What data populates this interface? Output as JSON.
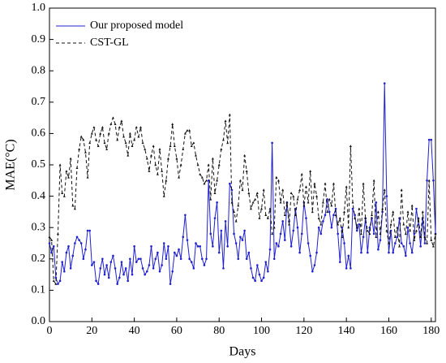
{
  "chart_data": {
    "type": "line",
    "xlabel": "Days",
    "ylabel": "MAE(°C)",
    "xlim": [
      0,
      182
    ],
    "ylim": [
      0,
      1
    ],
    "xticks": [
      0,
      20,
      40,
      60,
      80,
      100,
      120,
      140,
      160,
      180
    ],
    "yticks": [
      {
        "value": 0,
        "label": "0.0"
      },
      0.1,
      0.2,
      0.3,
      0.4,
      0.5,
      0.6,
      0.7,
      0.8,
      0.9,
      {
        "value": 1,
        "label": "1.0"
      }
    ],
    "legend": "upper left",
    "x": [
      0,
      1,
      2,
      3,
      4,
      5,
      6,
      7,
      8,
      9,
      10,
      11,
      12,
      13,
      14,
      15,
      16,
      17,
      18,
      19,
      20,
      21,
      22,
      23,
      24,
      25,
      26,
      27,
      28,
      29,
      30,
      31,
      32,
      33,
      34,
      35,
      36,
      37,
      38,
      39,
      40,
      41,
      42,
      43,
      44,
      45,
      46,
      47,
      48,
      49,
      50,
      51,
      52,
      53,
      54,
      55,
      56,
      57,
      58,
      59,
      60,
      61,
      62,
      63,
      64,
      65,
      66,
      67,
      68,
      69,
      70,
      71,
      72,
      73,
      74,
      75,
      76,
      77,
      78,
      79,
      80,
      81,
      82,
      83,
      84,
      85,
      86,
      87,
      88,
      89,
      90,
      91,
      92,
      93,
      94,
      95,
      96,
      97,
      98,
      99,
      100,
      101,
      102,
      103,
      104,
      105,
      106,
      107,
      108,
      109,
      110,
      111,
      112,
      113,
      114,
      115,
      116,
      117,
      118,
      119,
      120,
      121,
      122,
      123,
      124,
      125,
      126,
      127,
      128,
      129,
      130,
      131,
      132,
      133,
      134,
      135,
      136,
      137,
      138,
      139,
      140,
      141,
      142,
      143,
      144,
      145,
      146,
      147,
      148,
      149,
      150,
      151,
      152,
      153,
      154,
      155,
      156,
      157,
      158,
      159,
      160,
      161,
      162,
      163,
      164,
      165,
      166,
      167,
      168,
      169,
      170,
      171,
      172,
      173,
      174,
      175,
      176,
      177,
      178,
      179,
      180,
      181,
      182
    ],
    "series": [
      {
        "name": "Our proposed model",
        "color": "#1f1fd0",
        "style": "solid",
        "values": [
          0.25,
          0.22,
          0.24,
          0.14,
          0.12,
          0.13,
          0.19,
          0.16,
          0.22,
          0.24,
          0.17,
          0.21,
          0.25,
          0.27,
          0.26,
          0.25,
          0.2,
          0.23,
          0.29,
          0.29,
          0.18,
          0.19,
          0.13,
          0.12,
          0.17,
          0.2,
          0.15,
          0.18,
          0.14,
          0.19,
          0.21,
          0.17,
          0.12,
          0.14,
          0.19,
          0.15,
          0.17,
          0.13,
          0.2,
          0.15,
          0.24,
          0.19,
          0.2,
          0.2,
          0.17,
          0.15,
          0.16,
          0.18,
          0.24,
          0.17,
          0.2,
          0.22,
          0.16,
          0.18,
          0.25,
          0.2,
          0.24,
          0.12,
          0.16,
          0.22,
          0.21,
          0.23,
          0.2,
          0.27,
          0.34,
          0.26,
          0.2,
          0.19,
          0.17,
          0.25,
          0.24,
          0.24,
          0.2,
          0.18,
          0.2,
          0.45,
          0.28,
          0.24,
          0.33,
          0.38,
          0.22,
          0.29,
          0.17,
          0.32,
          0.24,
          0.44,
          0.42,
          0.28,
          0.25,
          0.2,
          0.27,
          0.26,
          0.29,
          0.2,
          0.22,
          0.17,
          0.14,
          0.13,
          0.18,
          0.15,
          0.13,
          0.14,
          0.19,
          0.16,
          0.23,
          0.57,
          0.2,
          0.25,
          0.24,
          0.28,
          0.32,
          0.26,
          0.38,
          0.32,
          0.24,
          0.29,
          0.36,
          0.3,
          0.22,
          0.28,
          0.38,
          0.33,
          0.25,
          0.21,
          0.16,
          0.18,
          0.22,
          0.3,
          0.28,
          0.32,
          0.34,
          0.39,
          0.35,
          0.3,
          0.34,
          0.36,
          0.28,
          0.19,
          0.3,
          0.25,
          0.17,
          0.21,
          0.17,
          0.36,
          0.34,
          0.29,
          0.31,
          0.22,
          0.27,
          0.33,
          0.22,
          0.3,
          0.33,
          0.28,
          0.38,
          0.23,
          0.26,
          0.35,
          0.76,
          0.4,
          0.22,
          0.29,
          0.22,
          0.25,
          0.27,
          0.33,
          0.25,
          0.24,
          0.21,
          0.3,
          0.25,
          0.22,
          0.28,
          0.36,
          0.31,
          0.24,
          0.33,
          0.25,
          0.45,
          0.58,
          0.58,
          0.45,
          0.28
        ]
      },
      {
        "name": "CST-GL",
        "color": "#111111",
        "style": "dashed",
        "values": [
          0.27,
          0.26,
          0.13,
          0.12,
          0.28,
          0.5,
          0.41,
          0.4,
          0.48,
          0.46,
          0.52,
          0.37,
          0.36,
          0.49,
          0.55,
          0.59,
          0.58,
          0.54,
          0.46,
          0.57,
          0.6,
          0.62,
          0.58,
          0.56,
          0.6,
          0.62,
          0.57,
          0.55,
          0.6,
          0.63,
          0.65,
          0.63,
          0.58,
          0.62,
          0.64,
          0.59,
          0.57,
          0.53,
          0.6,
          0.56,
          0.58,
          0.62,
          0.59,
          0.62,
          0.57,
          0.55,
          0.52,
          0.48,
          0.53,
          0.56,
          0.5,
          0.47,
          0.55,
          0.48,
          0.4,
          0.45,
          0.52,
          0.56,
          0.63,
          0.56,
          0.52,
          0.46,
          0.5,
          0.55,
          0.6,
          0.61,
          0.61,
          0.56,
          0.57,
          0.53,
          0.5,
          0.47,
          0.46,
          0.44,
          0.45,
          0.5,
          0.39,
          0.52,
          0.41,
          0.45,
          0.5,
          0.55,
          0.58,
          0.64,
          0.57,
          0.66,
          0.38,
          0.35,
          0.32,
          0.37,
          0.45,
          0.42,
          0.53,
          0.48,
          0.41,
          0.36,
          0.38,
          0.39,
          0.41,
          0.33,
          0.36,
          0.42,
          0.34,
          0.33,
          0.36,
          0.28,
          0.3,
          0.46,
          0.45,
          0.38,
          0.42,
          0.34,
          0.38,
          0.31,
          0.41,
          0.4,
          0.34,
          0.39,
          0.42,
          0.47,
          0.37,
          0.43,
          0.38,
          0.48,
          0.35,
          0.44,
          0.4,
          0.33,
          0.31,
          0.38,
          0.44,
          0.35,
          0.39,
          0.37,
          0.44,
          0.34,
          0.31,
          0.33,
          0.27,
          0.35,
          0.43,
          0.3,
          0.56,
          0.38,
          0.33,
          0.3,
          0.36,
          0.28,
          0.44,
          0.33,
          0.29,
          0.28,
          0.34,
          0.45,
          0.27,
          0.35,
          0.28,
          0.36,
          0.42,
          0.29,
          0.25,
          0.31,
          0.35,
          0.27,
          0.3,
          0.24,
          0.42,
          0.31,
          0.28,
          0.35,
          0.29,
          0.37,
          0.26,
          0.29,
          0.33,
          0.27,
          0.35,
          0.27,
          0.25,
          0.45,
          0.26,
          0.24,
          0.28
        ]
      }
    ]
  }
}
